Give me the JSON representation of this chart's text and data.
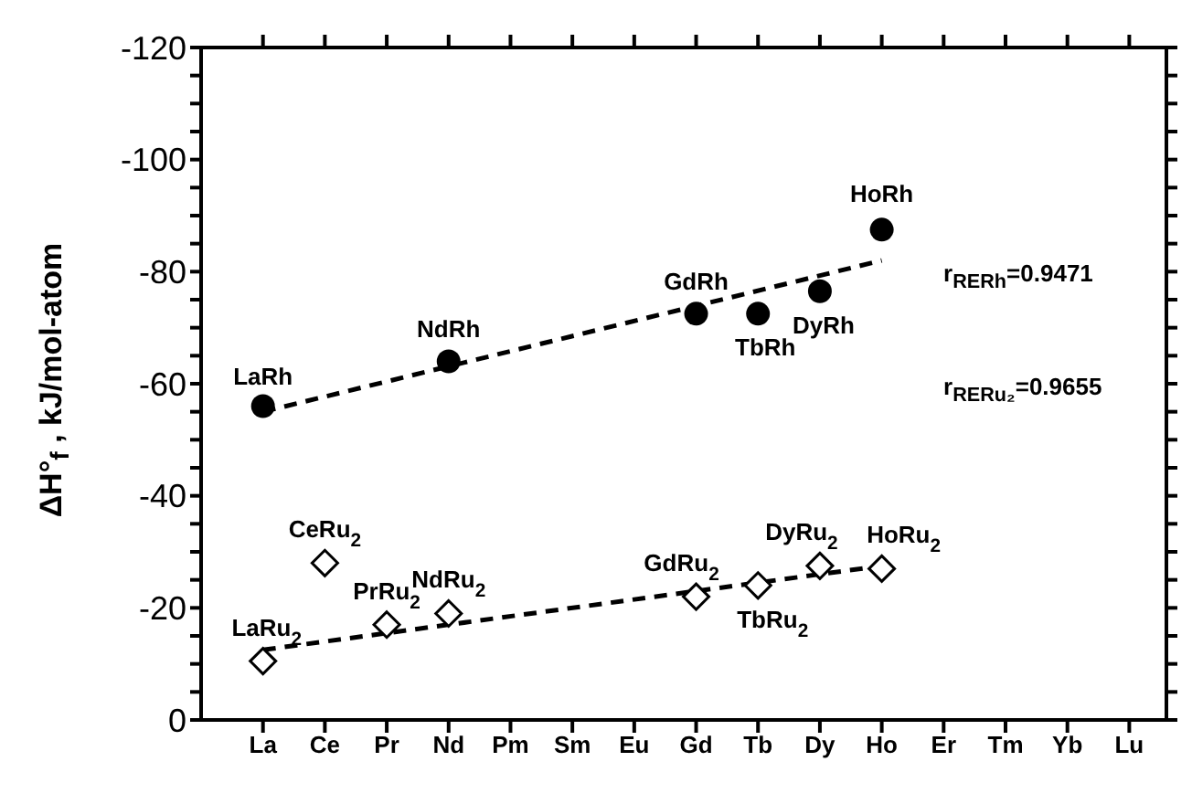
{
  "chart_data": {
    "type": "scatter",
    "ylabel": "ΔH°$_{f}$ ,  kJ/mol-atom",
    "categories": [
      "La",
      "Ce",
      "Pr",
      "Nd",
      "Pm",
      "Sm",
      "Eu",
      "Gd",
      "Tb",
      "Dy",
      "Ho",
      "Er",
      "Tm",
      "Yb",
      "Lu"
    ],
    "ylim": [
      0,
      -120
    ],
    "yticks": [
      0,
      {
        "value": -5,
        "label": null
      },
      {
        "value": -10,
        "label": null
      },
      {
        "value": -15,
        "label": null
      },
      -20,
      {
        "value": -25,
        "label": null
      },
      {
        "value": -30,
        "label": null
      },
      {
        "value": -35,
        "label": null
      },
      -40,
      {
        "value": -45,
        "label": null
      },
      {
        "value": -50,
        "label": null
      },
      {
        "value": -55,
        "label": null
      },
      -60,
      {
        "value": -65,
        "label": null
      },
      {
        "value": -70,
        "label": null
      },
      {
        "value": -75,
        "label": null
      },
      -80,
      {
        "value": -85,
        "label": null
      },
      {
        "value": -90,
        "label": null
      },
      {
        "value": -95,
        "label": null
      },
      -100,
      {
        "value": -105,
        "label": null
      },
      {
        "value": -110,
        "label": null
      },
      {
        "value": -115,
        "label": null
      },
      -120
    ],
    "series": [
      {
        "marker": "circle",
        "color": "#000000",
        "values": [
          -56,
          null,
          null,
          -64,
          null,
          null,
          null,
          -72.5,
          -72.5,
          -76.5,
          -87.5,
          null,
          null,
          null,
          null
        ]
      },
      {
        "marker": "diamond",
        "color": "#000000",
        "values": [
          -10.5,
          -28,
          -17,
          -19,
          null,
          null,
          null,
          -22,
          -24,
          -27.5,
          -27,
          null,
          null,
          null,
          null
        ]
      },
      {
        "type": "line",
        "line_style": "dashed",
        "color": "#000000",
        "x": [
          "La",
          "Ho"
        ],
        "values": [
          -55,
          -82
        ]
      },
      {
        "type": "line",
        "line_style": "dashed",
        "color": "#000000",
        "x": [
          "La",
          "Ho"
        ],
        "values": [
          -12.5,
          -27.5
        ]
      }
    ],
    "annotations": [
      {
        "text": "LaRh",
        "x": "La",
        "y": -56
      },
      {
        "text": "NdRh",
        "x": "Nd",
        "y": -64
      },
      {
        "text": "GdRh",
        "x": "Gd",
        "y": -72.5
      },
      {
        "text": "TbRh",
        "x": "Tb",
        "y": -72.5
      },
      {
        "text": "DyRh",
        "x": "Dy",
        "y": -76.5
      },
      {
        "text": "HoRh",
        "x": "Ho",
        "y": -87.5
      },
      {
        "text": "LaRu$_{2}$",
        "x": "La",
        "y": -10.5
      },
      {
        "text": "CeRu$_{2}$",
        "x": "Ce",
        "y": -28
      },
      {
        "text": "PrRu$_{2}$",
        "x": "Pr",
        "y": -17
      },
      {
        "text": "NdRu$_{2}$",
        "x": "Nd",
        "y": -19
      },
      {
        "text": "GdRu$_{2}$",
        "x": "Gd",
        "y": -22
      },
      {
        "text": "TbRu$_{2}$",
        "x": "Tb",
        "y": -24
      },
      {
        "text": "DyRu$_{2}$",
        "x": "Dy",
        "y": -27.5
      },
      {
        "text": "HoRu$_{2}$",
        "x": "Ho",
        "y": -27
      },
      "r$_{RERh}$=0.9471",
      "r$_{RERu₂}$=0.9655"
    ]
  }
}
